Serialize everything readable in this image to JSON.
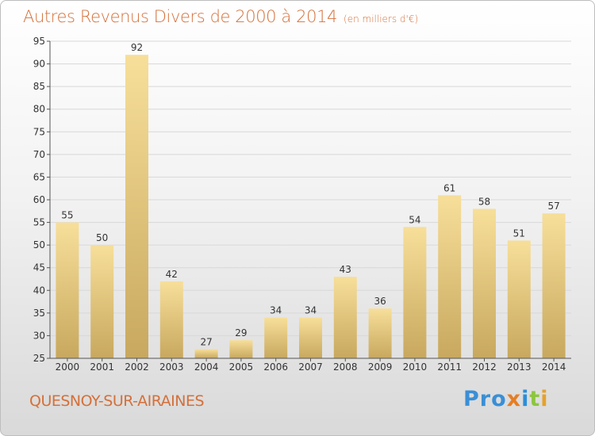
{
  "header": {
    "title": "Autres Revenus Divers de 2000 à 2014",
    "unit": "(en milliers d'€)"
  },
  "footer": {
    "commune": "QUESNOY-SUR-AIRAINES",
    "logo_parts": [
      "Pro",
      "x",
      "i",
      "t",
      "i"
    ]
  },
  "colors": {
    "title": "#d4703a",
    "bar_top": "#f7df9a",
    "bar_bottom": "#c8a85e",
    "axis": "#555555",
    "grid": "#d8d8d8"
  },
  "chart_data": {
    "type": "bar",
    "title": "Autres Revenus Divers de 2000 à 2014",
    "subtitle": "(en milliers d'€)",
    "xlabel": "",
    "ylabel": "",
    "categories": [
      "2000",
      "2001",
      "2002",
      "2003",
      "2004",
      "2005",
      "2006",
      "2007",
      "2008",
      "2009",
      "2010",
      "2011",
      "2012",
      "2013",
      "2014"
    ],
    "values": [
      55,
      50,
      92,
      42,
      27,
      29,
      34,
      34,
      43,
      36,
      54,
      61,
      58,
      51,
      57
    ],
    "ylim": [
      25,
      95
    ],
    "yticks": [
      25,
      30,
      35,
      40,
      45,
      50,
      55,
      60,
      65,
      70,
      75,
      80,
      85,
      90,
      95
    ],
    "grid": true,
    "legend": "none"
  }
}
